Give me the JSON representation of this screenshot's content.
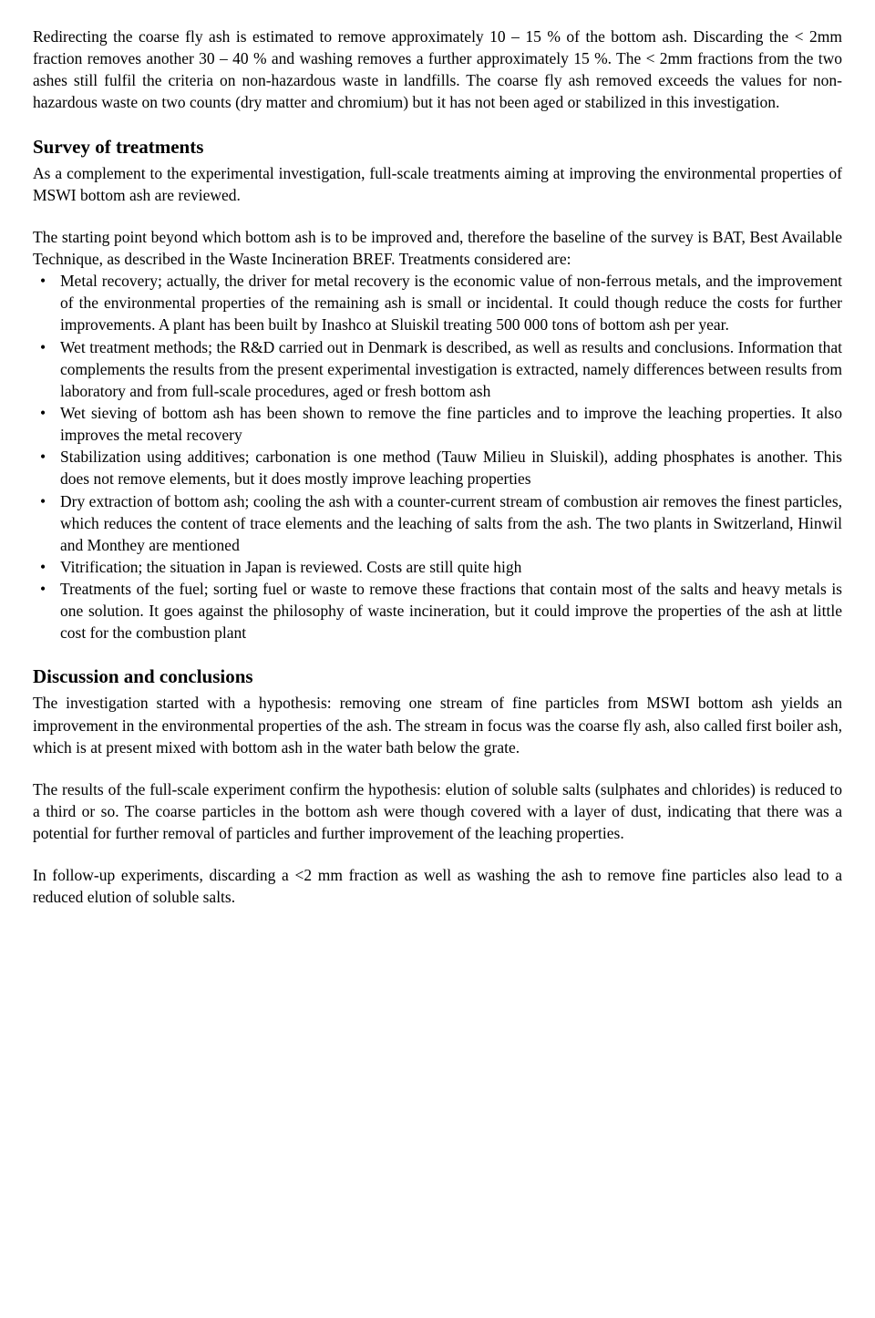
{
  "p1": "Redirecting the coarse fly ash is estimated to remove approximately 10 – 15 % of the bottom ash. Discarding the < 2mm fraction removes another 30 – 40 % and washing removes a further approximately 15 %. The < 2mm fractions from the two ashes still fulfil the criteria on non-hazardous waste in landfills. The coarse fly ash removed exceeds the values for non-hazardous waste on two counts (dry matter and chromium) but it has not been aged or stabilized in this investigation.",
  "h1": "Survey of treatments",
  "p2": "As a complement to the experimental investigation, full-scale treatments aiming at improving the environmental properties of MSWI bottom ash are reviewed.",
  "p3": "The starting point beyond which bottom ash is to be improved and, therefore the baseline of the survey is BAT, Best Available Technique, as described in the Waste Incineration BREF. Treatments considered are:",
  "bullets": [
    "Metal recovery; actually, the driver for metal recovery is the economic value of non-ferrous metals, and the improvement of the environmental properties of the remaining ash is small or incidental. It could though reduce the costs for further improvements. A plant has been built by Inashco at Sluiskil treating 500 000 tons of bottom ash per year.",
    "Wet treatment methods; the R&D carried out in Denmark is described, as well as results and conclusions. Information that complements the results from the present experimental investigation is extracted, namely differences between results from laboratory and from full-scale procedures, aged or fresh bottom ash",
    "Wet sieving of bottom ash has been shown to remove the fine particles and to improve the leaching properties. It also improves the metal recovery",
    "Stabilization using additives; carbonation is one method (Tauw Milieu in Sluiskil), adding phosphates is another. This does not remove elements, but it does mostly improve leaching properties",
    "Dry extraction of bottom ash; cooling the ash with a counter-current stream of combustion air removes the finest particles, which reduces the content of trace elements and the leaching of salts from the ash. The two plants in Switzerland, Hinwil and Monthey are mentioned",
    "Vitrification; the situation in Japan is reviewed. Costs are still quite high",
    "Treatments of the fuel; sorting fuel or waste to remove these fractions that contain most of the salts and heavy metals is one solution. It goes against the philosophy of waste incineration, but it could improve the properties of the ash at little cost for the combustion plant"
  ],
  "h2": "Discussion and conclusions",
  "p4": "The investigation started with a hypothesis: removing one stream of fine particles from MSWI bottom ash yields an improvement in the environmental properties of the ash. The stream in focus was the coarse fly ash, also called first boiler ash, which is at present mixed with bottom ash in the water bath below the grate.",
  "p5": "The results of the full-scale experiment confirm the hypothesis: elution of soluble salts (sulphates and chlorides) is reduced to a third or so. The coarse particles in the bottom ash were though covered with a layer of dust, indicating that there was a potential for further removal of particles and further improvement of the leaching properties.",
  "p6": "In follow-up experiments, discarding a <2 mm fraction as well as washing the ash to remove fine particles also lead to a reduced elution of soluble salts."
}
